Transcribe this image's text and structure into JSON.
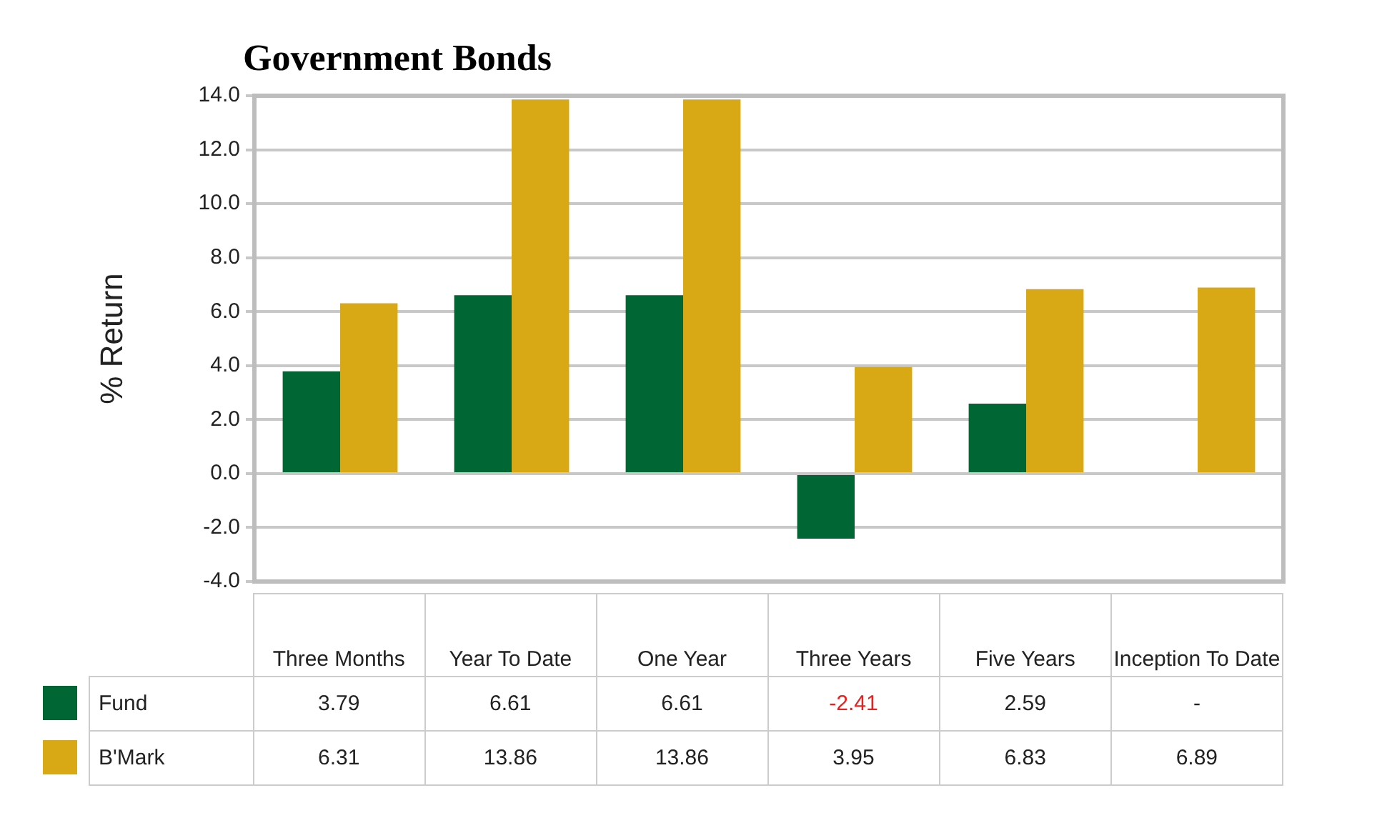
{
  "chart_data": {
    "type": "bar",
    "title": "Government Bonds",
    "ylabel": "% Return",
    "categories": [
      "Three Months",
      "Year To Date",
      "One Year",
      "Three Years",
      "Five Years",
      "Inception To Date"
    ],
    "series": [
      {
        "name": "Fund",
        "color": "#006633",
        "values": [
          3.79,
          6.61,
          6.61,
          -2.41,
          2.59,
          null
        ],
        "value_labels": [
          "3.79",
          "6.61",
          "6.61",
          "-2.41",
          "2.59",
          "-"
        ]
      },
      {
        "name": "B'Mark",
        "color": "#d9a815",
        "values": [
          6.31,
          13.86,
          13.86,
          3.95,
          6.83,
          6.89
        ],
        "value_labels": [
          "6.31",
          "13.86",
          "13.86",
          "3.95",
          "6.83",
          "6.89"
        ]
      }
    ],
    "ylim": [
      -4,
      14
    ],
    "yticks": [
      {
        "value": -4,
        "label": "-4.0"
      },
      {
        "value": -2,
        "label": "-2.0"
      },
      {
        "value": 0,
        "label": "0.0"
      },
      {
        "value": 2,
        "label": "2.0"
      },
      {
        "value": 4,
        "label": "4.0"
      },
      {
        "value": 6,
        "label": "6.0"
      },
      {
        "value": 8,
        "label": "8.0"
      },
      {
        "value": 10,
        "label": "10.0"
      },
      {
        "value": 12,
        "label": "12.0"
      },
      {
        "value": 14,
        "label": "14.0"
      }
    ],
    "grid": "y",
    "legend": "bottom left"
  }
}
